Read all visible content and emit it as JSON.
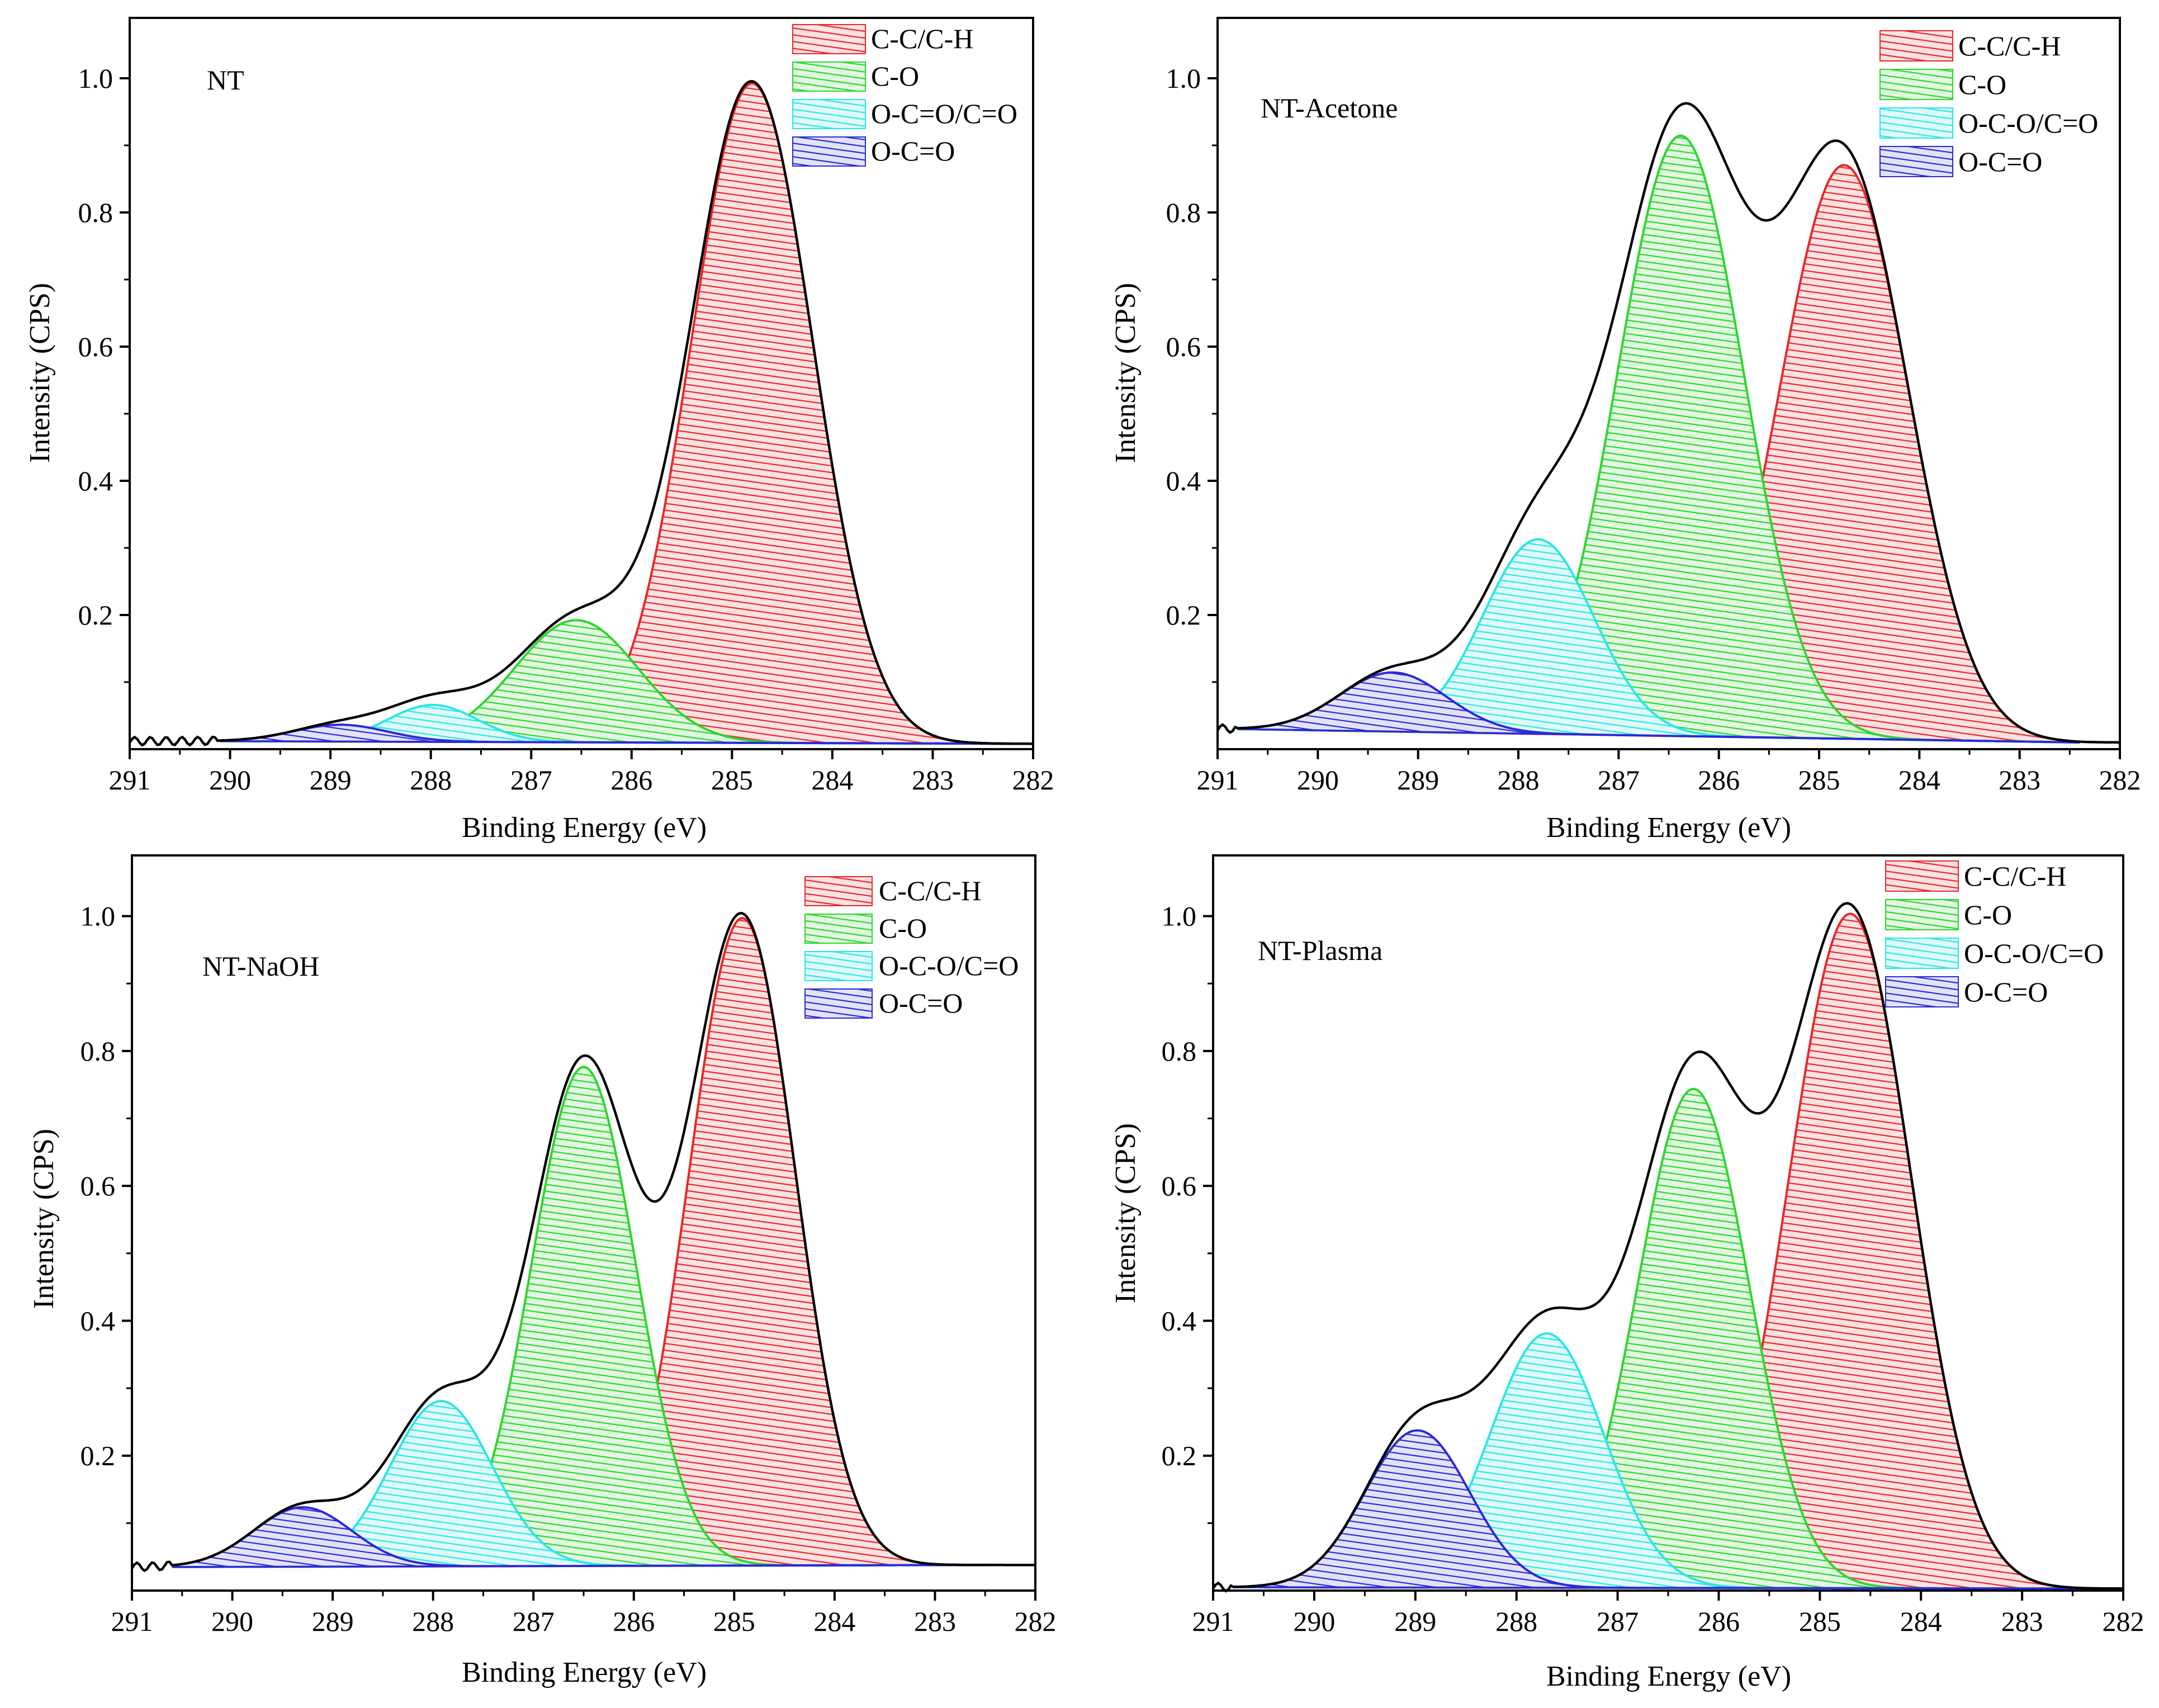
{
  "colors": {
    "C-C/C-H": "#e8262a",
    "C-O": "#2cd62c",
    "O-C=O/C=O": "#2ae6e6",
    "O-C=O": "#2a2ad6",
    "envelope": "#000000",
    "axis": "#000000"
  },
  "chart_data": [
    {
      "type": "area",
      "title": "NT",
      "xlabel": "Binding Energy (eV)",
      "ylabel": "Intensity (CPS)",
      "xlim": [
        291,
        282
      ],
      "ylim": [
        0.0,
        1.09
      ],
      "x_ticks": [
        "291",
        "290",
        "289",
        "288",
        "287",
        "286",
        "285",
        "284",
        "283",
        "282"
      ],
      "y_ticks": [
        "0.2",
        "0.4",
        "0.6",
        "0.8",
        "1.0"
      ],
      "legend_position": "top-right",
      "baseline": {
        "start": 0.012,
        "end": 0.008,
        "range": [
          290.1,
          282.0
        ],
        "noise_start": 291.0
      },
      "series": [
        {
          "name": "C-C/C-H",
          "center": 284.8,
          "amplitude": 0.983,
          "fwhm": 1.43
        },
        {
          "name": "C-O",
          "center": 286.55,
          "amplitude": 0.182,
          "fwhm": 1.45
        },
        {
          "name": "O-C=O/C=O",
          "center": 287.98,
          "amplitude": 0.055,
          "fwhm": 1.05
        },
        {
          "name": "O-C=O",
          "center": 288.9,
          "amplitude": 0.025,
          "fwhm": 1.1
        }
      ]
    },
    {
      "type": "area",
      "title": "NT-Acetone",
      "xlabel": "Binding Energy (eV)",
      "ylabel": "Intensity (CPS)",
      "xlim": [
        291,
        282
      ],
      "ylim": [
        0.0,
        1.09
      ],
      "x_ticks": [
        "291",
        "290",
        "289",
        "288",
        "287",
        "286",
        "285",
        "284",
        "283",
        "282"
      ],
      "y_ticks": [
        "0.2",
        "0.4",
        "0.6",
        "0.8",
        "1.0"
      ],
      "legend_position": "top-right",
      "baseline": {
        "start": 0.03,
        "end": 0.01,
        "range": [
          290.8,
          282.4
        ],
        "noise_start": 291.0
      },
      "series": [
        {
          "name": "C-C/C-H",
          "center": 284.75,
          "amplitude": 0.855,
          "fwhm": 1.52
        },
        {
          "name": "C-O",
          "center": 286.38,
          "amplitude": 0.895,
          "fwhm": 1.48
        },
        {
          "name": "O-C-O/C=O",
          "center": 287.8,
          "amplitude": 0.29,
          "fwhm": 1.3
        },
        {
          "name": "O-C=O",
          "center": 289.25,
          "amplitude": 0.088,
          "fwhm": 1.25
        }
      ]
    },
    {
      "type": "area",
      "title": "NT-NaOH",
      "xlabel": "Binding Energy (eV)",
      "ylabel": "Intensity (CPS)",
      "xlim": [
        291,
        282
      ],
      "ylim": [
        0.0,
        1.09
      ],
      "x_ticks": [
        "291",
        "290",
        "289",
        "288",
        "287",
        "286",
        "285",
        "284",
        "283",
        "282"
      ],
      "y_ticks": [
        "0.2",
        "0.4",
        "0.6",
        "0.8",
        "1.0"
      ],
      "legend_position": "top-right",
      "baseline": {
        "start": 0.035,
        "end": 0.038,
        "range": [
          290.6,
          282.5
        ],
        "noise_start": 291.0
      },
      "series": [
        {
          "name": "C-C/C-H",
          "center": 284.92,
          "amplitude": 0.96,
          "fwhm": 1.25
        },
        {
          "name": "C-O",
          "center": 286.5,
          "amplitude": 0.74,
          "fwhm": 1.22
        },
        {
          "name": "O-C-O/C=O",
          "center": 287.92,
          "amplitude": 0.245,
          "fwhm": 1.2
        },
        {
          "name": "O-C=O",
          "center": 289.3,
          "amplitude": 0.088,
          "fwhm": 1.15
        }
      ]
    },
    {
      "type": "area",
      "title": "NT-Plasma",
      "xlabel": "Binding Energy (eV)",
      "ylabel": "Intensity (CPS)",
      "xlim": [
        291,
        282
      ],
      "ylim": [
        0.0,
        1.09
      ],
      "x_ticks": [
        "291",
        "290",
        "289",
        "288",
        "287",
        "286",
        "285",
        "284",
        "283",
        "282"
      ],
      "y_ticks": [
        "0.2",
        "0.4",
        "0.6",
        "0.8",
        "1.0"
      ],
      "legend_position": "top-right",
      "baseline": {
        "start": 0.005,
        "end": 0.003,
        "range": [
          290.8,
          282.3
        ],
        "noise_start": 291.0
      },
      "series": [
        {
          "name": "C-C/C-H",
          "center": 284.7,
          "amplitude": 1.0,
          "fwhm": 1.43
        },
        {
          "name": "C-O",
          "center": 286.25,
          "amplitude": 0.74,
          "fwhm": 1.3
        },
        {
          "name": "O-C-O/C=O",
          "center": 287.7,
          "amplitude": 0.377,
          "fwhm": 1.32
        },
        {
          "name": "O-C=O",
          "center": 288.98,
          "amplitude": 0.233,
          "fwhm": 1.22
        }
      ]
    }
  ]
}
